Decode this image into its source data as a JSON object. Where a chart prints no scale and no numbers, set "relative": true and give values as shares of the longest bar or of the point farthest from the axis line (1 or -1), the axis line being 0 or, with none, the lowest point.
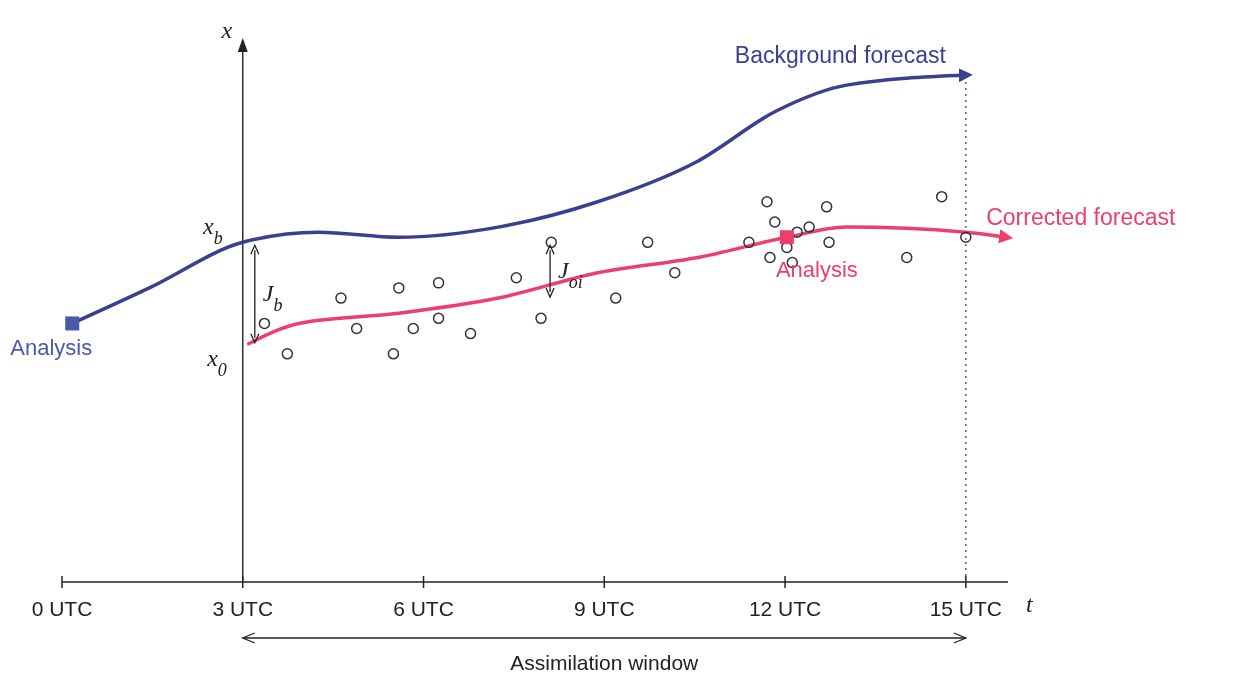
{
  "chart_data": {
    "type": "line",
    "relative": true,
    "xlabel": "t",
    "ylabel": "x",
    "xlim": [
      0,
      15.7
    ],
    "xticks": [
      {
        "value": 0,
        "label": "0 UTC"
      },
      {
        "value": 3,
        "label": "3 UTC"
      },
      {
        "value": 6,
        "label": "6 UTC"
      },
      {
        "value": 9,
        "label": "9 UTC"
      },
      {
        "value": 12,
        "label": "12 UTC"
      },
      {
        "value": 15,
        "label": "15 UTC"
      }
    ],
    "series": [
      {
        "name": "Background forecast",
        "type": "line",
        "color": "#3a3f8f",
        "marker": "none",
        "x": [
          0.17,
          1.45,
          3.0,
          4.26,
          5.59,
          7.24,
          8.89,
          10.55,
          11.87,
          13.02,
          15.0
        ],
        "values": [
          0.51,
          0.58,
          0.67,
          0.69,
          0.68,
          0.7,
          0.75,
          0.83,
          0.93,
          0.98,
          1
        ]
      },
      {
        "name": "Corrected forecast",
        "type": "line",
        "color": "#ec3f6c",
        "marker": "none",
        "x": [
          3.1,
          3.93,
          5.59,
          7.24,
          8.89,
          10.55,
          12.03,
          13.02,
          15.0,
          15.67
        ],
        "values": [
          0.47,
          0.51,
          0.53,
          0.56,
          0.61,
          0.64,
          0.68,
          0.7,
          0.69,
          0.68
        ]
      },
      {
        "type": "scatter",
        "color": "#333333",
        "marker": "circle",
        "x": [
          3.36,
          3.74,
          4.63,
          4.89,
          5.5,
          5.59,
          5.83,
          6.25,
          6.25,
          6.78,
          7.54,
          7.95,
          8.12,
          9.19,
          9.72,
          10.17,
          11.4,
          11.7,
          11.75,
          11.83,
          12.03,
          12.12,
          12.2,
          12.4,
          12.69,
          12.73,
          14.02,
          14.6,
          15.0
        ],
        "values": [
          0.51,
          0.45,
          0.56,
          0.5,
          0.45,
          0.58,
          0.5,
          0.52,
          0.59,
          0.49,
          0.6,
          0.52,
          0.67,
          0.56,
          0.67,
          0.61,
          0.67,
          0.75,
          0.64,
          0.71,
          0.66,
          0.63,
          0.69,
          0.7,
          0.74,
          0.67,
          0.64,
          0.76,
          0.68
        ]
      },
      {
        "type": "scatter",
        "marker": "square",
        "colors": [
          "#4a5aa8",
          "#ec3f6c"
        ],
        "x": [
          0.17,
          12.03
        ],
        "values": [
          0.51,
          0.68
        ]
      }
    ],
    "ref_lines": [
      {
        "axis": "x",
        "value": 15,
        "line_style": "dotted",
        "color": "#555555"
      },
      {
        "axis": "x",
        "value": 3,
        "line_style": "solid",
        "color": "#222222"
      }
    ],
    "annotations": [
      {
        "text": "x$_{b}$",
        "x": 3,
        "y": 0.67
      },
      {
        "text": "x$_{0}$",
        "x": 3.1,
        "y": 0.47
      },
      {
        "text": "Analysis",
        "x": 0.17,
        "y": 0.51
      },
      {
        "text": "Analysis",
        "x": 12.03,
        "y": 0.68
      },
      "J$_{b}$",
      "J$_{oi}$",
      "Assimilation window"
    ]
  }
}
